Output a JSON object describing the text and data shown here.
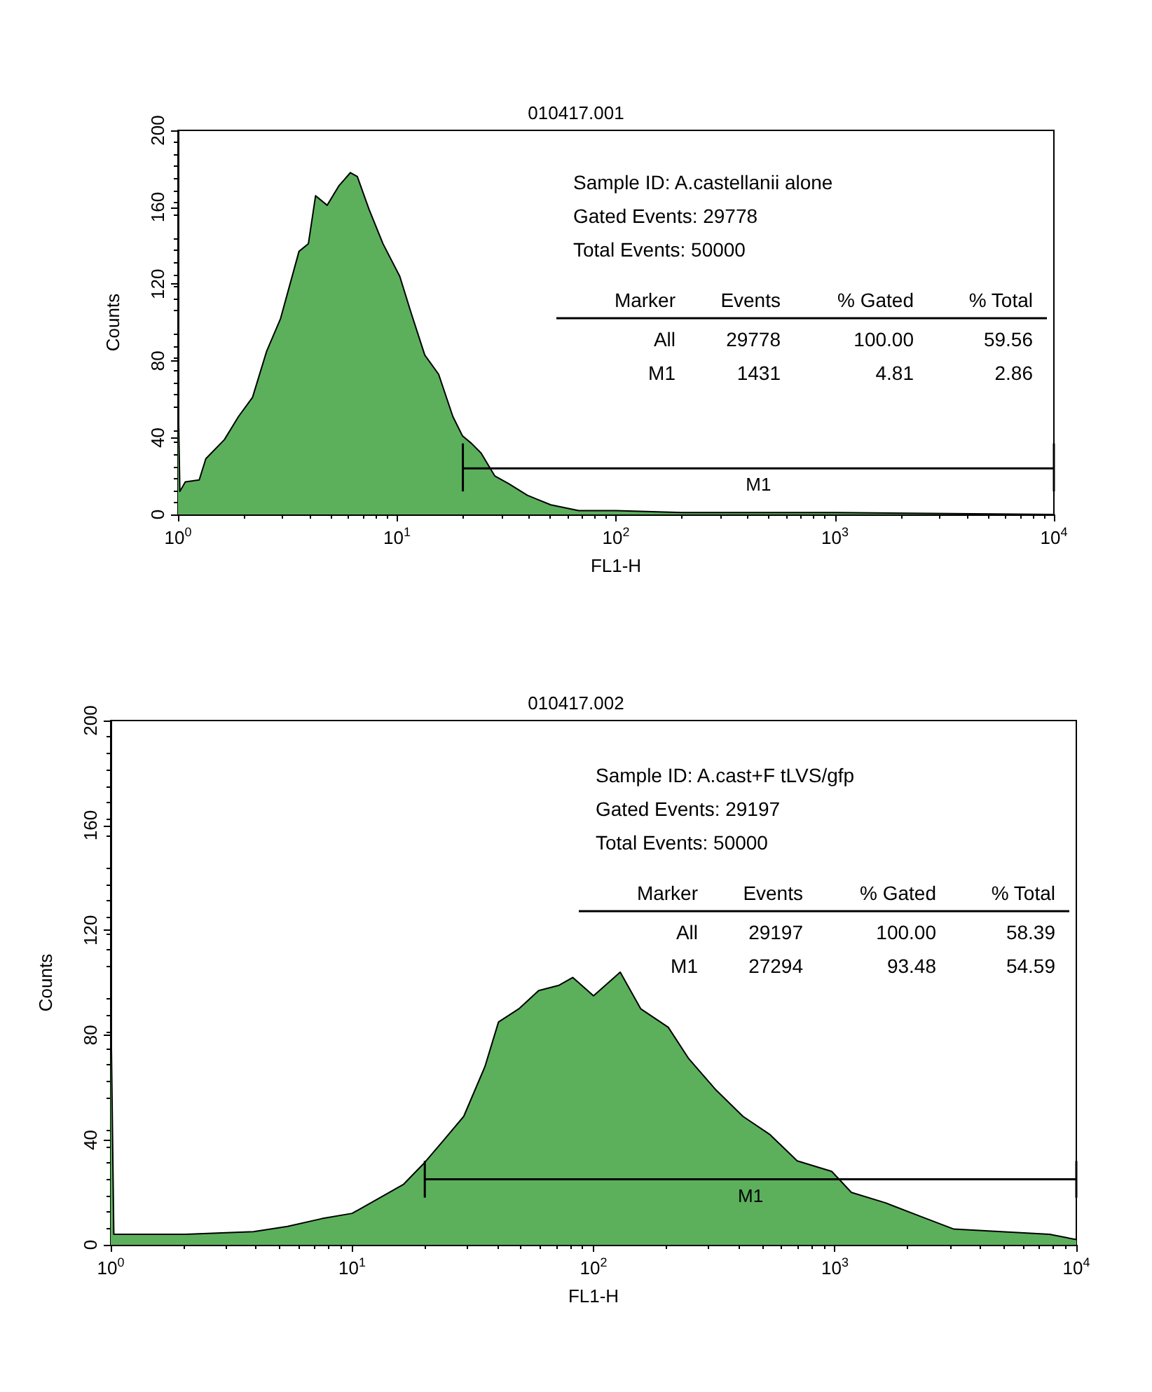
{
  "chart_data": [
    {
      "type": "area",
      "title": "010417.001",
      "xlabel": "FL1-H",
      "ylabel": "Counts",
      "log": "x",
      "xlim": [
        1,
        10000
      ],
      "xticks": [
        {
          "value": 1,
          "label": "10$^{0}$"
        },
        {
          "value": 10,
          "label": "10$^{1}$"
        },
        {
          "value": 100,
          "label": "10$^{2}$"
        },
        {
          "value": 1000,
          "label": "10$^{3}$"
        },
        {
          "value": 10000,
          "label": "10$^{4}$"
        }
      ],
      "ylim": [
        0,
        200
      ],
      "yticks": [
        0,
        40,
        80,
        120,
        160,
        200
      ],
      "series": [
        {
          "color": "#5cb05c",
          "x": [
            1,
            1.02,
            1.08,
            1.25,
            1.34,
            1.63,
            1.89,
            2.19,
            2.54,
            2.94,
            3.57,
            3.94,
            4.25,
            4.8,
            5.42,
            6.13,
            6.59,
            7.45,
            8.63,
            10.3,
            11.6,
            13.4,
            15.5,
            18,
            19.9,
            21.9,
            24.2,
            28,
            32.4,
            39.4,
            50.4,
            67.6,
            100,
            200,
            1000,
            10000
          ],
          "values": [
            68,
            12,
            17,
            18,
            29,
            39,
            51,
            61,
            85,
            102,
            137,
            141,
            166,
            161,
            171,
            178,
            176,
            159,
            141,
            124,
            105,
            83,
            73,
            51,
            41,
            37,
            32,
            20,
            16,
            10,
            5,
            2,
            2,
            1,
            1,
            0
          ]
        },
        {
          "type": "line",
          "name": "M1",
          "color": "#000000",
          "x": [
            20,
            10000
          ],
          "values": [
            24,
            24
          ],
          "errors": [
            [
              12,
              37
            ],
            [
              12,
              37
            ]
          ]
        }
      ],
      "annotations": [
        "Sample ID: A.castellanii alone",
        "Gated Events: 29778",
        "Total Events: 50000",
        "Marker",
        "Events",
        "% Gated",
        "% Total",
        "All",
        "29778",
        "100.00",
        "59.56",
        "M1",
        "1431",
        "4.81",
        "2.86"
      ]
    },
    {
      "type": "area",
      "title": "010417.002",
      "xlabel": "FL1-H",
      "ylabel": "Counts",
      "log": "x",
      "xlim": [
        1,
        10000
      ],
      "xticks": [
        {
          "value": 1,
          "label": "10$^{0}$"
        },
        {
          "value": 10,
          "label": "10$^{1}$"
        },
        {
          "value": 100,
          "label": "10$^{2}$"
        },
        {
          "value": 1000,
          "label": "10$^{3}$"
        },
        {
          "value": 10000,
          "label": "10$^{4}$"
        }
      ],
      "ylim": [
        0,
        200
      ],
      "yticks": [
        0,
        40,
        80,
        120,
        160,
        200
      ],
      "series": [
        {
          "color": "#5cb05c",
          "x": [
            1,
            1.03,
            2.04,
            3.9,
            5.4,
            7.5,
            10,
            12.5,
            16.3,
            19.8,
            24,
            29,
            35.5,
            40.4,
            49,
            59.3,
            72,
            82,
            100,
            129,
            157,
            204,
            248,
            322,
            416,
            539,
            698,
            970,
            1170,
            1620,
            2240,
            3110,
            4900,
            7750,
            10000
          ],
          "values": [
            96,
            4,
            4,
            5,
            7,
            10,
            12,
            17,
            23,
            31,
            40,
            49,
            68,
            85,
            90,
            97,
            99,
            102,
            95,
            104,
            90,
            83,
            71,
            59,
            49,
            42,
            32,
            28,
            20,
            16,
            11,
            6,
            5,
            4,
            2
          ]
        },
        {
          "type": "line",
          "name": "M1",
          "color": "#000000",
          "x": [
            20,
            10000
          ],
          "values": [
            25,
            25
          ],
          "errors": [
            [
              18,
              32
            ],
            [
              18,
              32
            ]
          ]
        }
      ],
      "annotations": [
        "Sample ID: A.cast+F tLVS/gfp",
        "Gated Events: 29197",
        "Total Events: 50000",
        "Marker",
        "Events",
        "% Gated",
        "% Total",
        "All",
        "29197",
        "100.00",
        "58.39",
        "M1",
        "27294",
        "93.48",
        "54.59"
      ]
    }
  ]
}
